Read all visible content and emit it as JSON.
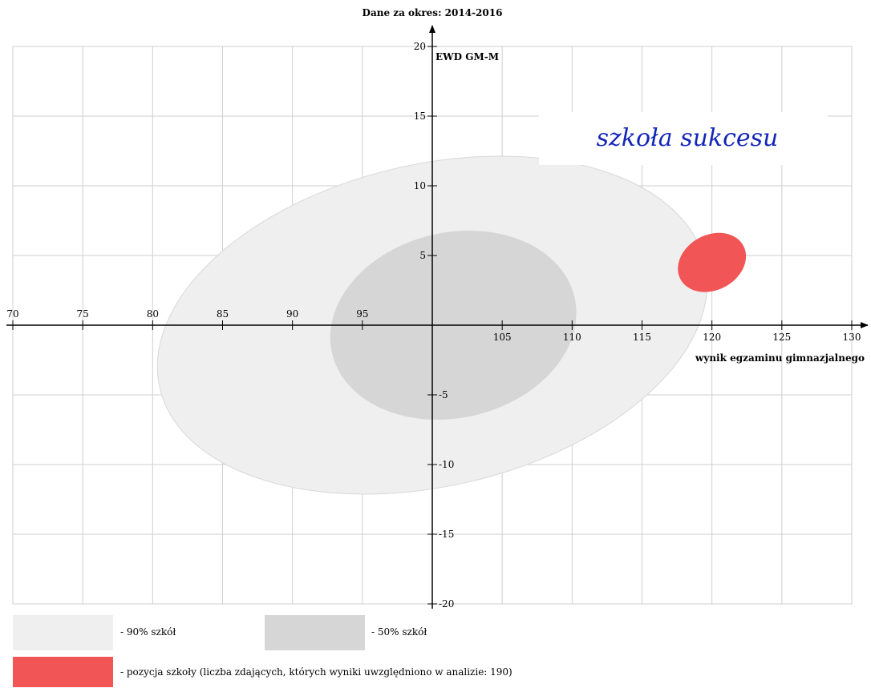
{
  "colors": {
    "grid": "#cfcfcf",
    "axis": "#000000",
    "band90": "#efefef",
    "band90_stroke": "#d8d8d8",
    "band50": "#d6d6d6",
    "school": "#f25555",
    "annotation": "#1226b8"
  },
  "chart_data": {
    "type": "scatter",
    "title": "Dane za okres: 2014-2016",
    "xlabel": "wynik egzaminu gimnazjalnego",
    "ylabel": "EWD GM-M",
    "xlim": [
      70,
      130
    ],
    "ylim": [
      -20,
      20
    ],
    "x_ticks": [
      70,
      75,
      80,
      85,
      90,
      95,
      100,
      105,
      110,
      115,
      120,
      125,
      130
    ],
    "x_tick_labels": [
      "70",
      "75",
      "80",
      "85",
      "90",
      "95",
      "",
      "105",
      "110",
      "115",
      "120",
      "125",
      "130"
    ],
    "y_ticks": [
      -20,
      -15,
      -10,
      -5,
      0,
      5,
      10,
      15,
      20
    ],
    "y_tick_labels": [
      "-20",
      "-15",
      "-10",
      "-5",
      "",
      "5",
      "10",
      "15",
      "20"
    ],
    "grid": true,
    "annotation": "szkoła sukcesu",
    "regions": [
      {
        "name": "90%",
        "cx": 100,
        "cy": 0,
        "rx": 20,
        "ry": 3.3,
        "angle_deg": 13
      },
      {
        "name": "50%",
        "cx": 101.5,
        "cy": 0,
        "rx": 8.9,
        "ry": 1.9,
        "angle_deg": 13
      }
    ],
    "school": {
      "cx": 120,
      "cy": 4.5,
      "rx": 2.55,
      "ry": 0.9,
      "angle_deg": 28
    }
  },
  "legend": {
    "items": [
      {
        "label": "- 90% szkół"
      },
      {
        "label": "- 50% szkół"
      },
      {
        "label": "- pozycja szkoły (liczba zdających, których wyniki uwzględniono w analizie: 190)"
      }
    ]
  }
}
